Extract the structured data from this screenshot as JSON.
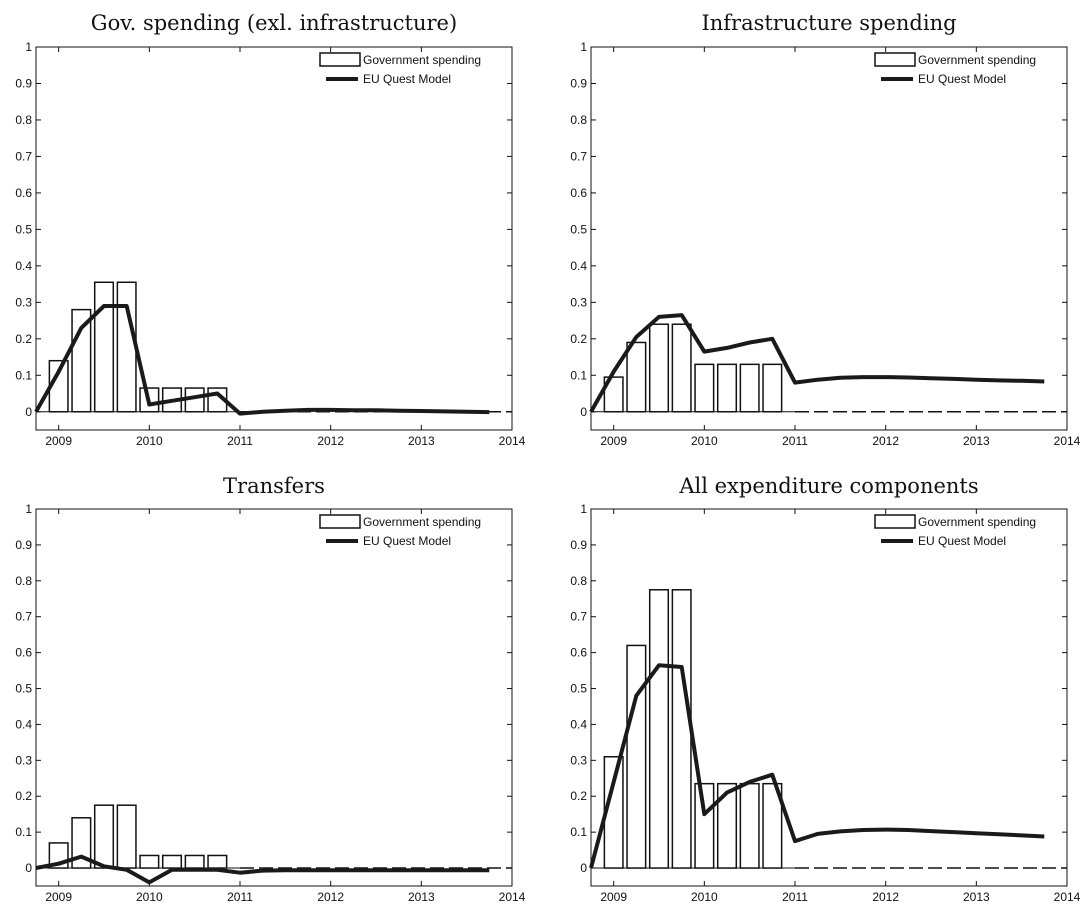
{
  "chart_data": [
    {
      "type": "bar",
      "title": "Gov. spending (exl. infrastructure)",
      "xlim": [
        2008.75,
        2014
      ],
      "ylim": [
        -0.05,
        1
      ],
      "x_ticks": [
        2009,
        2010,
        2011,
        2012,
        2013,
        2014
      ],
      "y_ticks": [
        0,
        0.1,
        0.2,
        0.3,
        0.4,
        0.5,
        0.6,
        0.7,
        0.8,
        0.9,
        1
      ],
      "legend": {
        "placement": "top-right",
        "entries": [
          "Government spending",
          "EU Quest Model"
        ]
      },
      "series": [
        {
          "name": "Government spending",
          "type": "bar",
          "x": [
            2009.0,
            2009.25,
            2009.5,
            2009.75,
            2010.0,
            2010.25,
            2010.5,
            2010.75
          ],
          "values": [
            0.14,
            0.28,
            0.355,
            0.355,
            0.065,
            0.065,
            0.065,
            0.065
          ]
        },
        {
          "name": "EU Quest Model",
          "type": "line",
          "x": [
            2008.75,
            2009.0,
            2009.25,
            2009.5,
            2009.75,
            2010.0,
            2010.25,
            2010.5,
            2010.75,
            2011.0,
            2011.25,
            2011.5,
            2011.75,
            2012.0,
            2012.25,
            2012.5,
            2012.75,
            2013.0,
            2013.25,
            2013.5,
            2013.75
          ],
          "values": [
            0.0,
            0.11,
            0.23,
            0.29,
            0.29,
            0.02,
            0.03,
            0.04,
            0.05,
            -0.005,
            0.0,
            0.003,
            0.005,
            0.005,
            0.004,
            0.004,
            0.003,
            0.002,
            0.001,
            0.0,
            -0.001
          ]
        }
      ]
    },
    {
      "type": "bar",
      "title": "Infrastructure spending",
      "xlim": [
        2008.75,
        2014
      ],
      "ylim": [
        -0.05,
        1
      ],
      "x_ticks": [
        2009,
        2010,
        2011,
        2012,
        2013,
        2014
      ],
      "y_ticks": [
        0,
        0.1,
        0.2,
        0.3,
        0.4,
        0.5,
        0.6,
        0.7,
        0.8,
        0.9,
        1
      ],
      "legend": {
        "placement": "top-right",
        "entries": [
          "Government spending",
          "EU Quest Model"
        ]
      },
      "series": [
        {
          "name": "Government spending",
          "type": "bar",
          "x": [
            2009.0,
            2009.25,
            2009.5,
            2009.75,
            2010.0,
            2010.25,
            2010.5,
            2010.75
          ],
          "values": [
            0.095,
            0.19,
            0.24,
            0.24,
            0.13,
            0.13,
            0.13,
            0.13
          ]
        },
        {
          "name": "EU Quest Model",
          "type": "line",
          "x": [
            2008.75,
            2009.0,
            2009.25,
            2009.5,
            2009.75,
            2010.0,
            2010.25,
            2010.5,
            2010.75,
            2011.0,
            2011.25,
            2011.5,
            2011.75,
            2012.0,
            2012.25,
            2012.5,
            2012.75,
            2013.0,
            2013.25,
            2013.5,
            2013.75
          ],
          "values": [
            0.0,
            0.11,
            0.205,
            0.26,
            0.265,
            0.165,
            0.175,
            0.19,
            0.2,
            0.08,
            0.088,
            0.093,
            0.095,
            0.095,
            0.094,
            0.092,
            0.09,
            0.088,
            0.086,
            0.085,
            0.083
          ]
        }
      ]
    },
    {
      "type": "bar",
      "title": "Transfers",
      "xlim": [
        2008.75,
        2014
      ],
      "ylim": [
        -0.05,
        1
      ],
      "x_ticks": [
        2009,
        2010,
        2011,
        2012,
        2013,
        2014
      ],
      "y_ticks": [
        0,
        0.1,
        0.2,
        0.3,
        0.4,
        0.5,
        0.6,
        0.7,
        0.8,
        0.9,
        1
      ],
      "legend": {
        "placement": "top-right",
        "entries": [
          "Government spending",
          "EU Quest Model"
        ]
      },
      "series": [
        {
          "name": "Government spending",
          "type": "bar",
          "x": [
            2009.0,
            2009.25,
            2009.5,
            2009.75,
            2010.0,
            2010.25,
            2010.5,
            2010.75
          ],
          "values": [
            0.07,
            0.14,
            0.175,
            0.175,
            0.035,
            0.035,
            0.035,
            0.035
          ]
        },
        {
          "name": "EU Quest Model",
          "type": "line",
          "x": [
            2008.75,
            2009.0,
            2009.25,
            2009.5,
            2009.75,
            2010.0,
            2010.25,
            2010.5,
            2010.75,
            2011.0,
            2011.25,
            2011.5,
            2011.75,
            2012.0,
            2012.25,
            2012.5,
            2012.75,
            2013.0,
            2013.25,
            2013.5,
            2013.75
          ],
          "values": [
            0.0,
            0.012,
            0.032,
            0.005,
            -0.005,
            -0.04,
            -0.005,
            -0.005,
            -0.005,
            -0.013,
            -0.007,
            -0.006,
            -0.006,
            -0.006,
            -0.006,
            -0.006,
            -0.006,
            -0.006,
            -0.006,
            -0.006,
            -0.006
          ]
        }
      ]
    },
    {
      "type": "bar",
      "title": "All expenditure components",
      "xlim": [
        2008.75,
        2014
      ],
      "ylim": [
        -0.05,
        1
      ],
      "x_ticks": [
        2009,
        2010,
        2011,
        2012,
        2013,
        2014
      ],
      "y_ticks": [
        0,
        0.1,
        0.2,
        0.3,
        0.4,
        0.5,
        0.6,
        0.7,
        0.8,
        0.9,
        1
      ],
      "legend": {
        "placement": "top-right",
        "entries": [
          "Government spending",
          "EU Quest Model"
        ]
      },
      "series": [
        {
          "name": "Government spending",
          "type": "bar",
          "x": [
            2009.0,
            2009.25,
            2009.5,
            2009.75,
            2010.0,
            2010.25,
            2010.5,
            2010.75
          ],
          "values": [
            0.31,
            0.62,
            0.775,
            0.775,
            0.235,
            0.235,
            0.235,
            0.235
          ]
        },
        {
          "name": "EU Quest Model",
          "type": "line",
          "x": [
            2008.75,
            2009.0,
            2009.25,
            2009.5,
            2009.75,
            2010.0,
            2010.25,
            2010.5,
            2010.75,
            2011.0,
            2011.25,
            2011.5,
            2011.75,
            2012.0,
            2012.25,
            2012.5,
            2012.75,
            2013.0,
            2013.25,
            2013.5,
            2013.75
          ],
          "values": [
            0.0,
            0.24,
            0.48,
            0.565,
            0.56,
            0.15,
            0.21,
            0.24,
            0.26,
            0.075,
            0.095,
            0.102,
            0.106,
            0.107,
            0.106,
            0.103,
            0.1,
            0.097,
            0.094,
            0.091,
            0.088
          ]
        }
      ]
    }
  ]
}
